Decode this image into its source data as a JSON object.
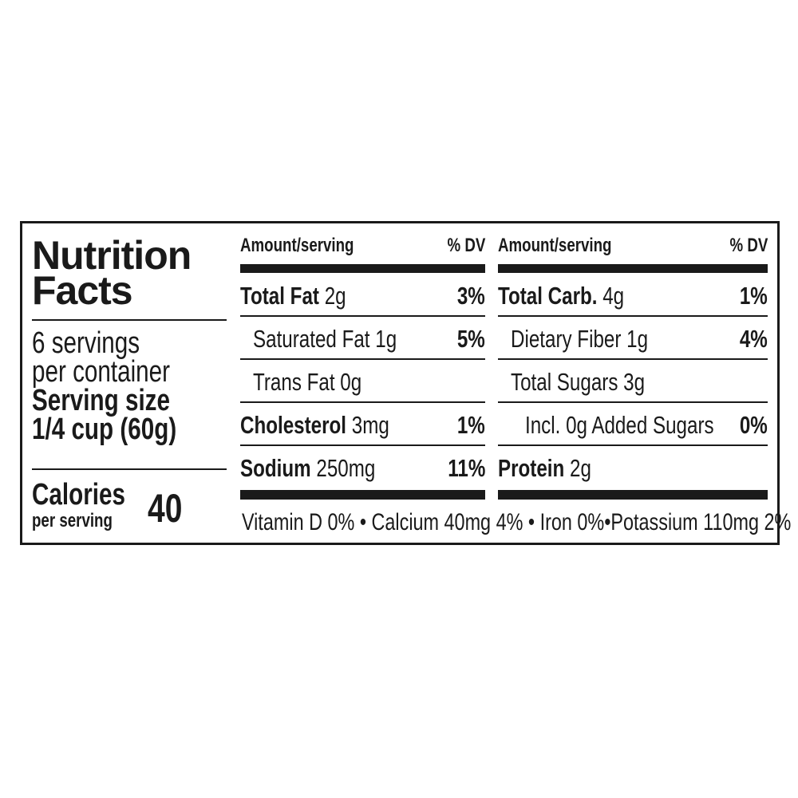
{
  "title_line1": "Nutrition",
  "title_line2": "Facts",
  "servings_line1": "6 servings",
  "servings_line2": "per container",
  "serving_size_label": "Serving size",
  "serving_size_value": "1/4 cup (60g)",
  "calories_label": "Calories",
  "calories_sub": "per serving",
  "calories_value": "40",
  "left_table": {
    "header_amount": "Amount/serving",
    "header_dv": "% DV",
    "rows": [
      {
        "name": "Total Fat",
        "amount": "2g",
        "dv": "3%",
        "bold": true
      },
      {
        "name": "Saturated Fat",
        "amount": "1g",
        "dv": "5%",
        "bold": false
      },
      {
        "name": "Trans Fat",
        "amount": "0g",
        "dv": "",
        "bold": false
      },
      {
        "name": "Cholesterol",
        "amount": "3mg",
        "dv": "1%",
        "bold": true
      },
      {
        "name": "Sodium",
        "amount": "250mg",
        "dv": "11%",
        "bold": true
      }
    ]
  },
  "right_table": {
    "header_amount": "Amount/serving",
    "header_dv": "% DV",
    "rows": [
      {
        "name": "Total Carb.",
        "amount": "4g",
        "dv": "1%",
        "bold": true
      },
      {
        "name": "Dietary Fiber",
        "amount": "1g",
        "dv": "4%",
        "bold": false
      },
      {
        "name": "Total Sugars",
        "amount": "3g",
        "dv": "",
        "bold": false
      },
      {
        "name": "Incl. 0g Added Sugars",
        "amount": "",
        "dv": "0%",
        "bold": false
      },
      {
        "name": "Protein",
        "amount": "2g",
        "dv": "",
        "bold": true
      }
    ]
  },
  "footer": "Vitamin D 0% • Calcium 40mg 4% • Iron 0%•Potassium 110mg 2%"
}
